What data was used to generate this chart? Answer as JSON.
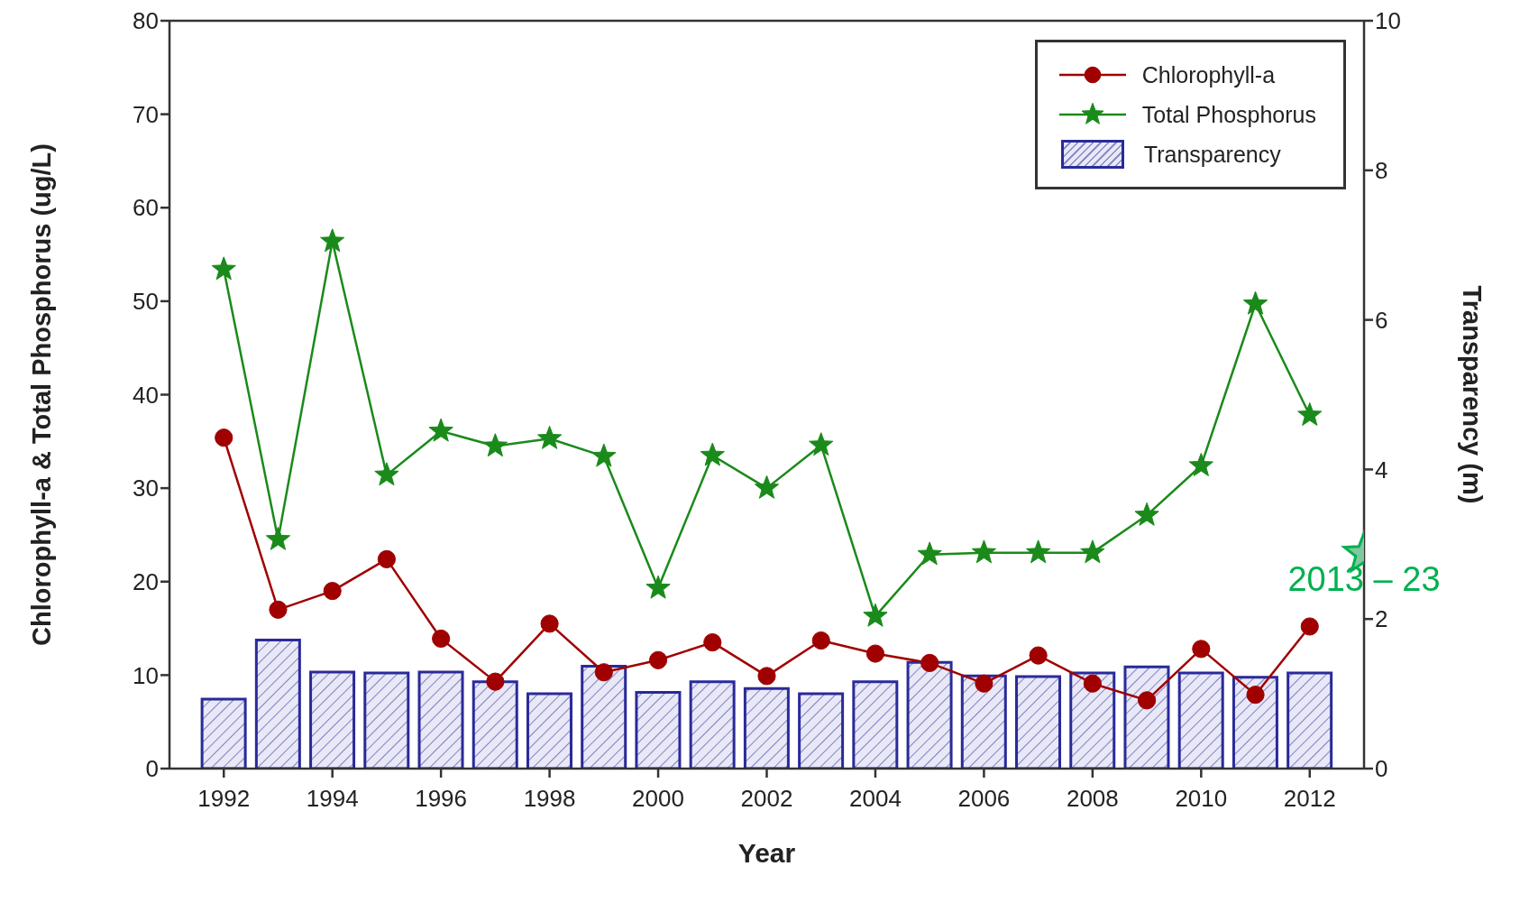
{
  "chart_data": {
    "type": "line",
    "xlabel": "Year",
    "ylabel": "Chlorophyll-a & Total Phosphorus (ug/L)",
    "y2label": "Transparency (m)",
    "x": [
      1992,
      1993,
      1994,
      1995,
      1996,
      1997,
      1998,
      1999,
      2000,
      2001,
      2002,
      2003,
      2004,
      2005,
      2006,
      2007,
      2008,
      2009,
      2010,
      2011,
      2012
    ],
    "series": [
      {
        "name": "Chlorophyll-a",
        "color": "#a00000",
        "marker": "circle",
        "values": [
          35.4,
          17,
          19,
          22.4,
          13.9,
          9.3,
          15.5,
          10.3,
          11.6,
          13.5,
          9.9,
          13.7,
          12.3,
          11.3,
          9.1,
          12.1,
          9.1,
          7.3,
          12.8,
          7.9,
          15.2
        ]
      },
      {
        "name": "Total Phosphorus",
        "color": "#1a8a1a",
        "marker": "star",
        "values": [
          53.4,
          24.5,
          56.4,
          31.4,
          36.1,
          34.5,
          35.3,
          33.4,
          19.3,
          33.5,
          30,
          34.6,
          16.3,
          22.9,
          23.1,
          23.1,
          23.1,
          27.1,
          32.4,
          49.7,
          37.8
        ]
      },
      {
        "name": "Transparency",
        "type": "bar",
        "axis": "y2",
        "color": "#2a2a9a",
        "values": [
          0.93,
          1.72,
          1.29,
          1.28,
          1.29,
          1.16,
          1.0,
          1.37,
          1.02,
          1.16,
          1.07,
          1.0,
          1.16,
          1.42,
          1.24,
          1.23,
          1.28,
          1.36,
          1.28,
          1.22,
          1.28
        ]
      },
      {
        "type": "scatter",
        "color": "#00b050",
        "marker": "star",
        "x": [
          2013
        ],
        "values": [
          23
        ]
      }
    ],
    "annotations": [
      {
        "text": "2013 – 23",
        "x": 2013,
        "y": 23
      }
    ],
    "xlim": [
      1991,
      2013
    ],
    "xticks": [
      1992,
      1994,
      1996,
      1998,
      2000,
      2002,
      2004,
      2006,
      2008,
      2010,
      2012
    ],
    "ylim": [
      0,
      80
    ],
    "yticks": [
      0,
      10,
      20,
      30,
      40,
      50,
      60,
      70,
      80
    ],
    "y2lim": [
      0,
      10
    ],
    "y2ticks": [
      0,
      2,
      4,
      6,
      8,
      10
    ],
    "legend": "top right"
  }
}
